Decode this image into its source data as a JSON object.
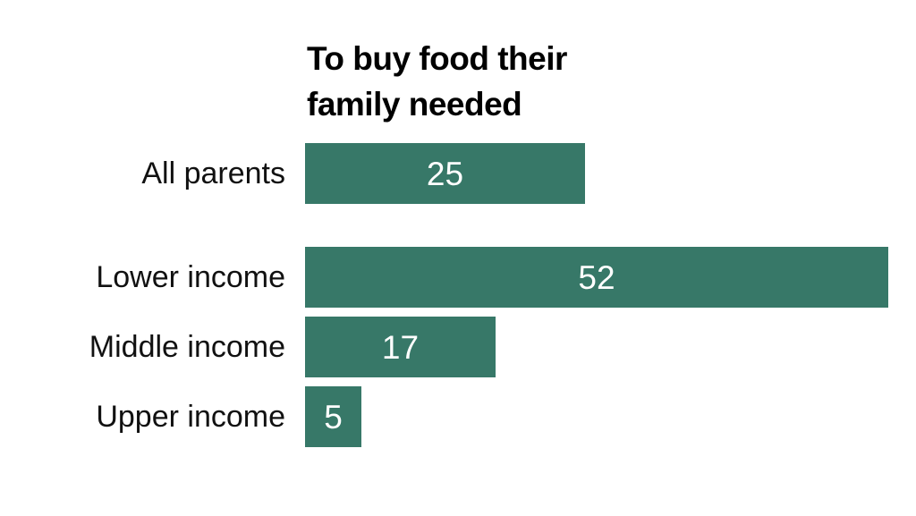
{
  "chart_data": {
    "type": "bar",
    "orientation": "horizontal",
    "title": "To buy food their family needed",
    "title_lines": [
      "To buy food their",
      "family needed"
    ],
    "categories": [
      "All parents",
      "Lower income",
      "Middle income",
      "Upper income"
    ],
    "values": [
      25,
      52,
      17,
      5
    ],
    "groups": [
      {
        "rows": [
          {
            "label": "All parents",
            "value": 25
          }
        ]
      },
      {
        "rows": [
          {
            "label": "Lower income",
            "value": 52
          },
          {
            "label": "Middle income",
            "value": 17
          },
          {
            "label": "Upper income",
            "value": 5
          }
        ]
      }
    ],
    "xlim": [
      0,
      52
    ],
    "grid": false,
    "legend": false,
    "bar_color": "#377868",
    "value_label_color": "#ffffff",
    "label_color": "#111111",
    "title_color": "#000000"
  }
}
